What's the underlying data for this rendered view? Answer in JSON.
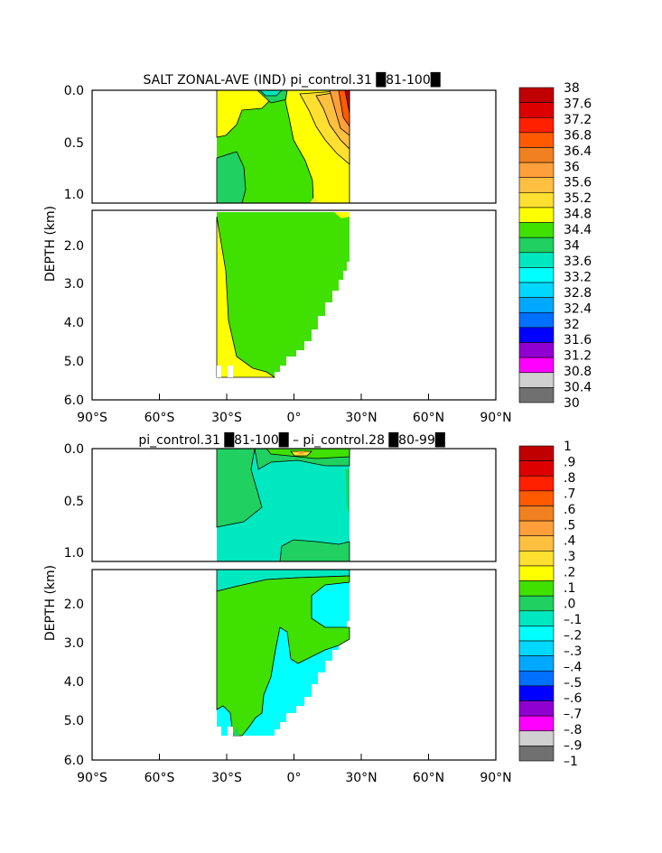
{
  "chart_data": [
    {
      "type": "heatmap",
      "title": "SALT ZONAL-AVE (IND) pi_control.31 █81-100█",
      "ylabel": "DEPTH (km)",
      "x_ticks": [
        "90°S",
        "60°S",
        "30°S",
        "0°",
        "30°N",
        "60°N",
        "90°N"
      ],
      "y_ticks_upper": [
        "0.0",
        "0.5",
        "1.0"
      ],
      "y_ticks_lower": [
        "2.0",
        "3.0",
        "4.0",
        "5.0",
        "6.0"
      ],
      "xlim": [
        -90,
        90
      ],
      "ylim_km": [
        0,
        6
      ],
      "colorbar_labels": [
        "38",
        "37.6",
        "37.2",
        "36.8",
        "36.4",
        "36",
        "35.6",
        "35.2",
        "34.8",
        "34.4",
        "34",
        "33.6",
        "33.2",
        "32.8",
        "32.4",
        "32",
        "31.6",
        "31.2",
        "30.8",
        "30.4",
        "30"
      ],
      "colorbar_colors": [
        "#c00000",
        "#dc0000",
        "#ff2000",
        "#ff5a00",
        "#f08020",
        "#ff9f3c",
        "#ffbf40",
        "#ffe030",
        "#ffff00",
        "#40e000",
        "#20d060",
        "#00e8c0",
        "#00ffff",
        "#00d8ff",
        "#00a8ff",
        "#0070ff",
        "#0000ff",
        "#9000d0",
        "#ff00ff",
        "#d0d0d0",
        "#707070"
      ]
    },
    {
      "type": "heatmap",
      "title": "pi_control.31 █81-100█ – pi_control.28 █80-99█",
      "ylabel": "DEPTH (km)",
      "x_ticks": [
        "90°S",
        "60°S",
        "30°S",
        "0°",
        "30°N",
        "60°N",
        "90°N"
      ],
      "y_ticks_upper": [
        "0.0",
        "0.5",
        "1.0"
      ],
      "y_ticks_lower": [
        "2.0",
        "3.0",
        "4.0",
        "5.0",
        "6.0"
      ],
      "xlim": [
        -90,
        90
      ],
      "ylim_km": [
        0,
        6
      ],
      "colorbar_labels": [
        "1",
        ".9",
        ".8",
        ".7",
        ".6",
        ".5",
        ".4",
        ".3",
        ".2",
        ".1",
        ".0",
        "–.1",
        "–.2",
        "–.3",
        "–.4",
        "–.5",
        "–.6",
        "–.7",
        "–.8",
        "–.9",
        "–1"
      ],
      "colorbar_colors": [
        "#c00000",
        "#dc0000",
        "#ff2000",
        "#ff5a00",
        "#f08020",
        "#ff9f3c",
        "#ffbf40",
        "#ffe030",
        "#ffff00",
        "#40e000",
        "#20d060",
        "#00e8c0",
        "#00ffff",
        "#00d8ff",
        "#00a8ff",
        "#0070ff",
        "#0000ff",
        "#9000d0",
        "#ff00ff",
        "#d0d0d0",
        "#707070"
      ]
    }
  ]
}
